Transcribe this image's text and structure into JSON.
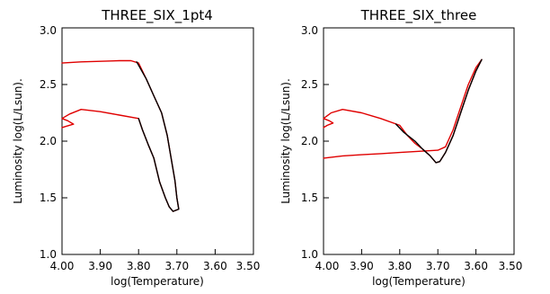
{
  "chart_data": [
    {
      "type": "line",
      "title": "THREE_SIX_1pt4",
      "xlabel": "log(Temperature)",
      "ylabel": "Luminosity log(L/Lsun).",
      "xlim": [
        4.0,
        3.5
      ],
      "ylim": [
        1.0,
        3.0
      ],
      "x_reversed": true,
      "xticks": [
        "4.00",
        "3.90",
        "3.80",
        "3.70",
        "3.60",
        "3.50"
      ],
      "yticks": [
        "1.0",
        "1.5",
        "2.0",
        "2.5",
        "3.0"
      ],
      "grid": false,
      "series": [
        {
          "color": "#e00000",
          "points": [
            [
              4.0,
              2.69
            ],
            [
              3.95,
              2.7
            ],
            [
              3.9,
              2.705
            ],
            [
              3.85,
              2.71
            ],
            [
              3.82,
              2.71
            ],
            [
              3.8,
              2.69
            ],
            [
              3.78,
              2.55
            ],
            [
              3.76,
              2.4
            ],
            [
              3.74,
              2.25
            ],
            [
              3.725,
              2.05
            ],
            [
              3.715,
              1.85
            ],
            [
              3.705,
              1.65
            ],
            [
              3.7,
              1.5
            ],
            [
              3.695,
              1.4
            ],
            [
              3.71,
              1.38
            ],
            [
              3.72,
              1.42
            ],
            [
              3.73,
              1.5
            ],
            [
              3.745,
              1.64
            ],
            [
              3.76,
              1.85
            ],
            [
              3.775,
              1.97
            ],
            [
              3.79,
              2.1
            ],
            [
              3.8,
              2.2
            ],
            [
              3.85,
              2.23
            ],
            [
              3.9,
              2.26
            ],
            [
              3.95,
              2.28
            ],
            [
              3.98,
              2.24
            ],
            [
              4.0,
              2.2
            ],
            [
              3.985,
              2.18
            ],
            [
              3.97,
              2.15
            ],
            [
              3.99,
              2.13
            ],
            [
              4.0,
              2.12
            ]
          ]
        },
        {
          "color": "#000000",
          "points": [
            [
              3.805,
              2.7
            ],
            [
              3.78,
              2.55
            ],
            [
              3.76,
              2.4
            ],
            [
              3.74,
              2.25
            ],
            [
              3.725,
              2.05
            ],
            [
              3.715,
              1.85
            ],
            [
              3.705,
              1.65
            ],
            [
              3.7,
              1.5
            ],
            [
              3.695,
              1.4
            ],
            [
              3.71,
              1.38
            ],
            [
              3.72,
              1.42
            ],
            [
              3.73,
              1.5
            ],
            [
              3.745,
              1.64
            ],
            [
              3.76,
              1.85
            ],
            [
              3.775,
              1.97
            ],
            [
              3.79,
              2.1
            ],
            [
              3.8,
              2.2
            ]
          ]
        }
      ]
    },
    {
      "type": "line",
      "title": "THREE_SIX_three",
      "xlabel": "log(Temperature)",
      "ylabel": "Luminosity log(L/Lsun).",
      "xlim": [
        4.0,
        3.5
      ],
      "ylim": [
        1.0,
        3.0
      ],
      "x_reversed": true,
      "xticks": [
        "4.00",
        "3.90",
        "3.80",
        "3.70",
        "3.60",
        "3.50"
      ],
      "yticks": [
        "1.0",
        "1.5",
        "2.0",
        "2.5",
        "3.0"
      ],
      "grid": false,
      "series": [
        {
          "color": "#e00000",
          "points": [
            [
              4.0,
              1.85
            ],
            [
              3.95,
              1.87
            ],
            [
              3.9,
              1.88
            ],
            [
              3.85,
              1.89
            ],
            [
              3.8,
              1.9
            ],
            [
              3.75,
              1.91
            ],
            [
              3.7,
              1.92
            ],
            [
              3.68,
              1.95
            ],
            [
              3.66,
              2.1
            ],
            [
              3.64,
              2.3
            ],
            [
              3.62,
              2.5
            ],
            [
              3.6,
              2.65
            ],
            [
              3.585,
              2.72
            ],
            [
              3.6,
              2.62
            ],
            [
              3.62,
              2.45
            ],
            [
              3.64,
              2.25
            ],
            [
              3.66,
              2.05
            ],
            [
              3.68,
              1.9
            ],
            [
              3.695,
              1.82
            ],
            [
              3.705,
              1.81
            ],
            [
              3.72,
              1.87
            ],
            [
              3.74,
              1.93
            ],
            [
              3.76,
              1.98
            ],
            [
              3.78,
              2.05
            ],
            [
              3.8,
              2.14
            ],
            [
              3.85,
              2.2
            ],
            [
              3.9,
              2.25
            ],
            [
              3.95,
              2.28
            ],
            [
              3.98,
              2.25
            ],
            [
              4.0,
              2.2
            ],
            [
              3.985,
              2.18
            ],
            [
              3.975,
              2.16
            ],
            [
              3.99,
              2.14
            ],
            [
              4.0,
              2.12
            ]
          ]
        },
        {
          "color": "#000000",
          "points": [
            [
              3.81,
              2.15
            ],
            [
              3.79,
              2.08
            ],
            [
              3.76,
              2.0
            ],
            [
              3.74,
              1.93
            ],
            [
              3.72,
              1.87
            ],
            [
              3.705,
              1.81
            ],
            [
              3.695,
              1.82
            ],
            [
              3.68,
              1.9
            ],
            [
              3.66,
              2.05
            ],
            [
              3.64,
              2.25
            ],
            [
              3.62,
              2.45
            ],
            [
              3.6,
              2.62
            ],
            [
              3.585,
              2.72
            ]
          ]
        }
      ]
    }
  ]
}
